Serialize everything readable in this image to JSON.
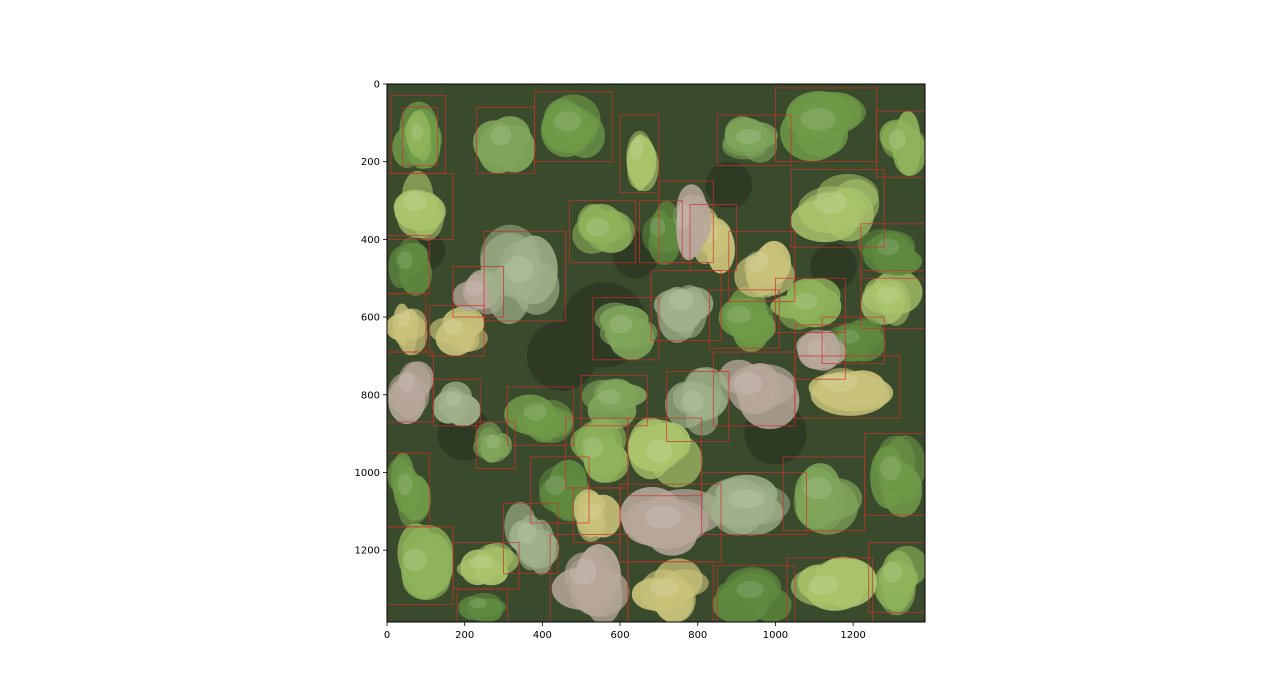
{
  "image": {
    "description_icon": "aerial-forest-canopy",
    "canopy_colors": [
      "#6f9a48",
      "#8fb35a",
      "#a9c46b",
      "#5f8a3f",
      "#c9c27a",
      "#b7a79b",
      "#9fb08a",
      "#7fa55a"
    ],
    "gap_color": "#2f3a24",
    "box_color": "#d0302a"
  },
  "axes": {
    "x_ticks": [
      "0",
      "200",
      "400",
      "600",
      "800",
      "1000",
      "1200"
    ],
    "y_ticks": [
      "0",
      "200",
      "400",
      "600",
      "800",
      "1000",
      "1200"
    ],
    "x_tick_values": [
      0,
      200,
      400,
      600,
      800,
      1000,
      1200
    ],
    "y_tick_values": [
      0,
      200,
      400,
      600,
      800,
      1000,
      1200
    ],
    "x_range": [
      0,
      1385
    ],
    "y_range": [
      0,
      1385
    ]
  },
  "detections": [
    [
      10,
      30,
      150,
      230
    ],
    [
      40,
      60,
      130,
      210
    ],
    [
      0,
      230,
      170,
      400
    ],
    [
      0,
      390,
      110,
      540
    ],
    [
      0,
      540,
      100,
      690
    ],
    [
      0,
      690,
      120,
      870
    ],
    [
      120,
      760,
      240,
      880
    ],
    [
      230,
      870,
      330,
      990
    ],
    [
      0,
      950,
      110,
      1140
    ],
    [
      0,
      1140,
      170,
      1340
    ],
    [
      170,
      1180,
      340,
      1300
    ],
    [
      180,
      1300,
      310,
      1385
    ],
    [
      110,
      570,
      250,
      700
    ],
    [
      170,
      470,
      300,
      600
    ],
    [
      250,
      380,
      460,
      610
    ],
    [
      230,
      60,
      380,
      230
    ],
    [
      380,
      20,
      580,
      200
    ],
    [
      470,
      300,
      640,
      460
    ],
    [
      600,
      80,
      700,
      280
    ],
    [
      650,
      300,
      760,
      460
    ],
    [
      780,
      310,
      900,
      480
    ],
    [
      700,
      250,
      840,
      460
    ],
    [
      680,
      480,
      860,
      660
    ],
    [
      530,
      550,
      700,
      710
    ],
    [
      830,
      530,
      1010,
      680
    ],
    [
      1000,
      500,
      1180,
      640
    ],
    [
      1220,
      480,
      1385,
      630
    ],
    [
      1120,
      600,
      1280,
      720
    ],
    [
      1050,
      700,
      1320,
      860
    ],
    [
      840,
      690,
      1050,
      880
    ],
    [
      720,
      740,
      880,
      920
    ],
    [
      500,
      750,
      670,
      880
    ],
    [
      310,
      780,
      480,
      930
    ],
    [
      460,
      860,
      620,
      1040
    ],
    [
      620,
      860,
      810,
      1060
    ],
    [
      370,
      960,
      520,
      1130
    ],
    [
      480,
      1040,
      600,
      1180
    ],
    [
      600,
      1030,
      860,
      1230
    ],
    [
      810,
      1000,
      1080,
      1160
    ],
    [
      1020,
      960,
      1230,
      1150
    ],
    [
      1230,
      900,
      1385,
      1110
    ],
    [
      1240,
      1180,
      1385,
      1360
    ],
    [
      1030,
      1220,
      1250,
      1385
    ],
    [
      850,
      1240,
      1050,
      1385
    ],
    [
      620,
      1230,
      840,
      1385
    ],
    [
      420,
      1160,
      620,
      1385
    ],
    [
      300,
      1080,
      440,
      1260
    ],
    [
      850,
      80,
      1040,
      210
    ],
    [
      1000,
      10,
      1260,
      200
    ],
    [
      1260,
      70,
      1385,
      240
    ],
    [
      1040,
      220,
      1280,
      420
    ],
    [
      1220,
      360,
      1385,
      500
    ],
    [
      880,
      380,
      1050,
      560
    ],
    [
      1050,
      620,
      1180,
      760
    ]
  ]
}
